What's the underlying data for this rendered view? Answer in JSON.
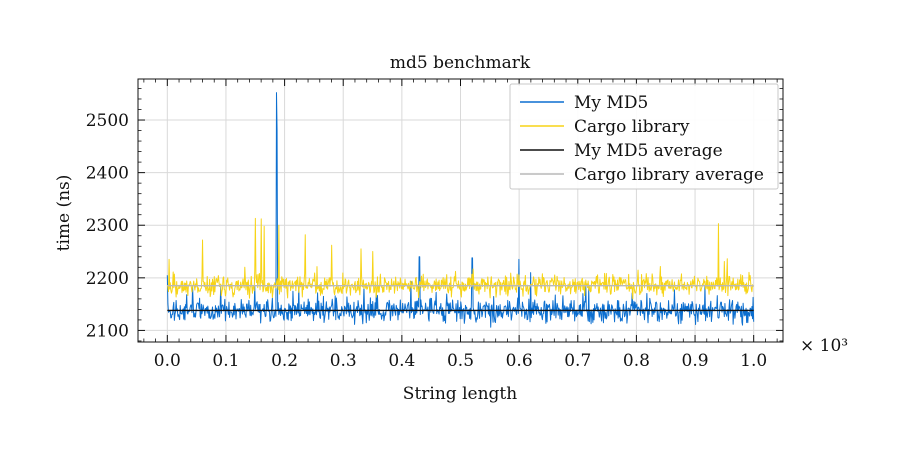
{
  "chart_data": {
    "type": "line",
    "title": "md5 benchmark",
    "xlabel": "String length",
    "ylabel": "time (ns)",
    "x_scale_note": "× 10³",
    "xlim": [
      -0.05,
      1.05
    ],
    "ylim": [
      2078,
      2578
    ],
    "x_ticks": [
      0.0,
      0.1,
      0.2,
      0.3,
      0.4,
      0.5,
      0.6,
      0.7,
      0.8,
      0.9,
      1.0
    ],
    "x_tick_labels": [
      "0.0",
      "0.1",
      "0.2",
      "0.3",
      "0.4",
      "0.5",
      "0.6",
      "0.7",
      "0.8",
      "0.9",
      "1.0"
    ],
    "y_ticks": [
      2100,
      2200,
      2300,
      2400,
      2500
    ],
    "y_tick_labels": [
      "2100",
      "2200",
      "2300",
      "2400",
      "2500"
    ],
    "grid": true,
    "legend_position": "top-right",
    "series": [
      {
        "name": "My MD5",
        "color": "#0c6fd0",
        "kind": "noisy",
        "x_range": [
          0.0,
          1.0
        ],
        "n_points": 1000,
        "mean": 2137,
        "spread": 18,
        "spikes": [
          {
            "x": 0.0,
            "y": 2205
          },
          {
            "x": 0.186,
            "y": 2552
          },
          {
            "x": 0.187,
            "y": 2480
          },
          {
            "x": 0.43,
            "y": 2240
          },
          {
            "x": 0.52,
            "y": 2238
          },
          {
            "x": 0.6,
            "y": 2235
          },
          {
            "x": 0.62,
            "y": 2210
          }
        ]
      },
      {
        "name": "Cargo library",
        "color": "#f7d417",
        "kind": "noisy",
        "x_range": [
          0.0,
          1.0
        ],
        "n_points": 1000,
        "mean": 2185,
        "spread": 15,
        "spikes": [
          {
            "x": 0.003,
            "y": 2235
          },
          {
            "x": 0.06,
            "y": 2272
          },
          {
            "x": 0.15,
            "y": 2313
          },
          {
            "x": 0.16,
            "y": 2312
          },
          {
            "x": 0.165,
            "y": 2298
          },
          {
            "x": 0.19,
            "y": 2300
          },
          {
            "x": 0.235,
            "y": 2282
          },
          {
            "x": 0.28,
            "y": 2262
          },
          {
            "x": 0.33,
            "y": 2255
          },
          {
            "x": 0.35,
            "y": 2250
          },
          {
            "x": 0.94,
            "y": 2303
          }
        ]
      },
      {
        "name": "My MD5 average",
        "color": "#111111",
        "kind": "constant",
        "x_range": [
          0.0,
          1.0
        ],
        "value": 2138
      },
      {
        "name": "Cargo library average",
        "color": "#b9b9b9",
        "kind": "constant",
        "x_range": [
          0.0,
          1.0
        ],
        "value": 2185
      }
    ]
  }
}
